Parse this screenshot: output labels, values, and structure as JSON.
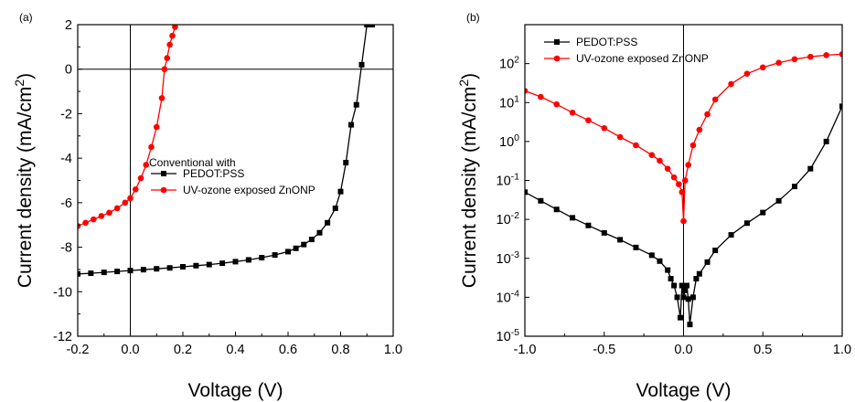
{
  "chart_data": [
    {
      "type": "line",
      "panel_label": "(a)",
      "xlabel": "Voltage (V)",
      "ylabel": "Current density (mA/cm",
      "ylabel_sup": "2",
      "ylabel_end": ")",
      "xlim": [
        -0.2,
        1.0
      ],
      "ylim": [
        -12,
        2
      ],
      "xticks": [
        -0.2,
        0.0,
        0.2,
        0.4,
        0.6,
        0.8,
        1.0
      ],
      "xtick_labels": [
        "-0.2",
        "0.0",
        "0.2",
        "0.4",
        "0.6",
        "0.8",
        "1.0"
      ],
      "yticks": [
        -12,
        -10,
        -8,
        -6,
        -4,
        -2,
        0,
        2
      ],
      "ytick_labels": [
        "-12",
        "-10",
        "-8",
        "-6",
        "-4",
        "-2",
        "0",
        "2"
      ],
      "legend_title": "Conventional with",
      "legend_position": "center",
      "series": [
        {
          "name": "PEDOT:PSS",
          "color": "#000000",
          "marker": "square",
          "x": [
            -0.2,
            -0.15,
            -0.1,
            -0.05,
            0.0,
            0.05,
            0.1,
            0.15,
            0.2,
            0.25,
            0.3,
            0.35,
            0.4,
            0.45,
            0.5,
            0.55,
            0.6,
            0.63,
            0.66,
            0.69,
            0.72,
            0.75,
            0.78,
            0.8,
            0.82,
            0.84,
            0.86,
            0.88,
            0.9,
            0.92
          ],
          "y": [
            -9.2,
            -9.17,
            -9.13,
            -9.09,
            -9.05,
            -9.01,
            -8.97,
            -8.93,
            -8.88,
            -8.83,
            -8.78,
            -8.72,
            -8.65,
            -8.57,
            -8.47,
            -8.35,
            -8.2,
            -8.05,
            -7.88,
            -7.65,
            -7.35,
            -6.9,
            -6.25,
            -5.5,
            -4.2,
            -2.5,
            -1.6,
            0.2,
            2.0,
            2.0
          ]
        },
        {
          "name": "UV-ozone exposed ZnONP",
          "color": "#ff0000",
          "marker": "circle",
          "x": [
            -0.2,
            -0.17,
            -0.14,
            -0.11,
            -0.08,
            -0.05,
            -0.02,
            0.0,
            0.02,
            0.04,
            0.06,
            0.08,
            0.1,
            0.12,
            0.13,
            0.14,
            0.15,
            0.16,
            0.17
          ],
          "y": [
            -7.05,
            -6.9,
            -6.75,
            -6.6,
            -6.45,
            -6.25,
            -6.0,
            -5.8,
            -5.4,
            -4.9,
            -4.3,
            -3.5,
            -2.6,
            -1.3,
            0.0,
            0.5,
            1.1,
            1.5,
            1.9
          ]
        }
      ]
    },
    {
      "type": "line",
      "panel_label": "(b)",
      "xlabel": "Voltage (V)",
      "ylabel": "Current density (mA/cm",
      "ylabel_sup": "2",
      "ylabel_end": ")",
      "xlim": [
        -1.0,
        1.0
      ],
      "ylim": [
        1e-05,
        1000
      ],
      "yscale": "log",
      "xticks": [
        -1.0,
        -0.5,
        0.0,
        0.5,
        1.0
      ],
      "xtick_labels": [
        "-1.0",
        "-0.5",
        "0.0",
        "0.5",
        "1.0"
      ],
      "yticks_exp": [
        -5,
        -4,
        -3,
        -2,
        -1,
        0,
        1,
        2
      ],
      "ytick_base": "10",
      "legend_position": "top-left",
      "series": [
        {
          "name": "PEDOT:PSS",
          "color": "#000000",
          "marker": "square",
          "x": [
            -1.0,
            -0.9,
            -0.8,
            -0.7,
            -0.6,
            -0.5,
            -0.4,
            -0.3,
            -0.2,
            -0.15,
            -0.1,
            -0.08,
            -0.06,
            -0.04,
            -0.02,
            -0.01,
            0.0,
            0.01,
            0.02,
            0.03,
            0.04,
            0.06,
            0.08,
            0.1,
            0.15,
            0.2,
            0.3,
            0.4,
            0.5,
            0.6,
            0.7,
            0.8,
            0.9,
            1.0
          ],
          "y": [
            0.05,
            0.03,
            0.018,
            0.011,
            0.007,
            0.0045,
            0.003,
            0.0019,
            0.0012,
            0.00085,
            0.0005,
            0.0003,
            0.0002,
            0.0001,
            3e-05,
            0.0002,
            0.0001,
            0.00015,
            0.0002,
            9e-05,
            2e-05,
            0.0001,
            0.0003,
            0.0004,
            0.0008,
            0.0016,
            0.004,
            0.008,
            0.015,
            0.03,
            0.07,
            0.2,
            1.0,
            8.0
          ]
        },
        {
          "name": "UV-ozone exposed ZnONP",
          "color": "#ff0000",
          "marker": "circle",
          "x": [
            -1.0,
            -0.9,
            -0.8,
            -0.7,
            -0.6,
            -0.5,
            -0.4,
            -0.3,
            -0.2,
            -0.15,
            -0.1,
            -0.06,
            -0.03,
            -0.01,
            0.0,
            0.01,
            0.03,
            0.06,
            0.1,
            0.15,
            0.2,
            0.3,
            0.4,
            0.5,
            0.6,
            0.7,
            0.8,
            0.9,
            1.0
          ],
          "y": [
            20,
            14,
            9,
            5.5,
            3.5,
            2.2,
            1.3,
            0.8,
            0.45,
            0.32,
            0.2,
            0.12,
            0.08,
            0.05,
            0.009,
            0.1,
            0.25,
            0.8,
            2.0,
            5.0,
            12,
            30,
            55,
            80,
            105,
            130,
            150,
            165,
            175
          ]
        }
      ]
    }
  ]
}
